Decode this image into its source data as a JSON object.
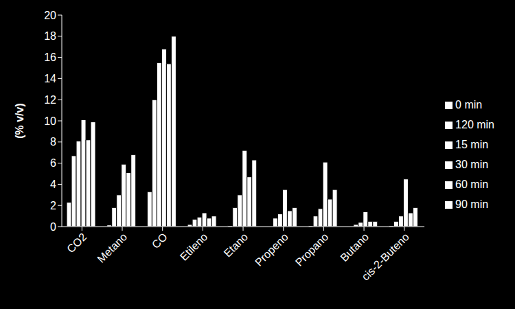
{
  "chart_data": {
    "type": "bar",
    "ylabel": "(% v/v)",
    "categories": [
      "CO2",
      "Metano",
      "CO",
      "Etileno",
      "Etano",
      "Propeno",
      "Propano",
      "Butano",
      "cis-2-Buteno"
    ],
    "series": [
      {
        "name": "0 min",
        "color": "#ffffff",
        "values": [
          2.3,
          0.15,
          3.3,
          0.2,
          0.1,
          0,
          0.1,
          0,
          0.1
        ]
      },
      {
        "name": "15 min",
        "color": "#ffffff",
        "values": [
          6.7,
          1.8,
          12.0,
          0.7,
          1.8,
          0.8,
          1.0,
          0.2,
          0.5
        ]
      },
      {
        "name": "30 min",
        "color": "#ffffff",
        "values": [
          8.1,
          3.0,
          15.5,
          0.9,
          3.0,
          1.2,
          1.7,
          0.4,
          1.0
        ]
      },
      {
        "name": "60 min",
        "color": "#ffffff",
        "values": [
          10.1,
          5.9,
          16.8,
          1.3,
          7.2,
          3.5,
          6.1,
          1.4,
          4.5
        ]
      },
      {
        "name": "90 min",
        "color": "#ffffff",
        "values": [
          8.2,
          5.1,
          15.4,
          0.8,
          4.7,
          1.5,
          2.6,
          0.5,
          1.3
        ]
      },
      {
        "name": "120 min",
        "color": "#ffffff",
        "values": [
          9.9,
          6.8,
          18.0,
          1.0,
          6.3,
          1.8,
          3.5,
          0.5,
          1.8
        ]
      }
    ],
    "ylim": [
      0,
      20
    ],
    "yticks": [
      0,
      2,
      4,
      6,
      8,
      10,
      12,
      14,
      16,
      18,
      20
    ],
    "grid": false,
    "legend": "right"
  }
}
